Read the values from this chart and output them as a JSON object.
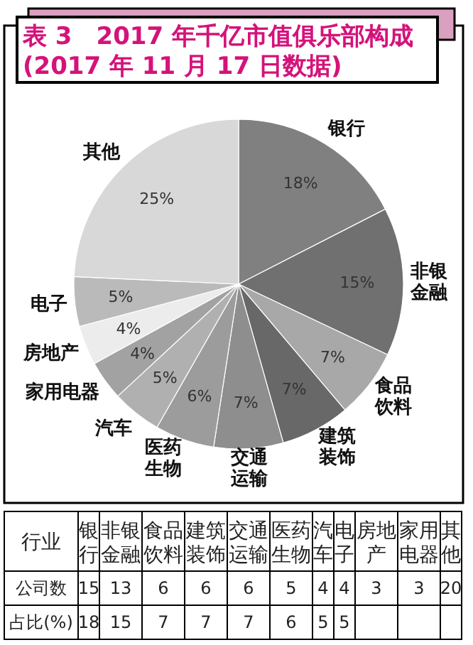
{
  "chart_data": [
    {
      "type": "pie",
      "title": "表 3　2017 年千亿市值俱乐部构成(2017 年 11 月 17 日数据)",
      "categories": [
        "银行",
        "非银金融",
        "食品饮料",
        "建筑装饰",
        "交通运输",
        "医药生物",
        "汽车",
        "家用电器",
        "房地产",
        "电子",
        "其他"
      ],
      "values": [
        18,
        15,
        7,
        7,
        7,
        6,
        5,
        4,
        4,
        5,
        25
      ],
      "value_labels": [
        "18%",
        "15%",
        "7%",
        "7%",
        "7%",
        "6%",
        "5%",
        "4%",
        "4%",
        "5%",
        "25%"
      ],
      "colors": [
        "#808080",
        "#707070",
        "#a8a8a8",
        "#686868",
        "#8e8e8e",
        "#9c9c9c",
        "#b0b0b0",
        "#a2a2a2",
        "#ececec",
        "#bababa",
        "#d8d8d8"
      ]
    },
    {
      "type": "other",
      "xlabel": "行业",
      "categories": [
        "银行",
        "非银金融",
        "食品饮料",
        "建筑装饰",
        "交通运输",
        "医药生物",
        "汽车",
        "电子",
        "房地产",
        "家用电器",
        "其他"
      ],
      "series": [
        {
          "name": "公司数",
          "values": [
            15,
            13,
            6,
            6,
            6,
            5,
            4,
            4,
            3,
            3,
            20
          ]
        },
        {
          "name": "占比(%)",
          "values": [
            18,
            15,
            7,
            7,
            7,
            6,
            5,
            5,
            null,
            null,
            null
          ]
        }
      ],
      "data_labels": true
    }
  ]
}
